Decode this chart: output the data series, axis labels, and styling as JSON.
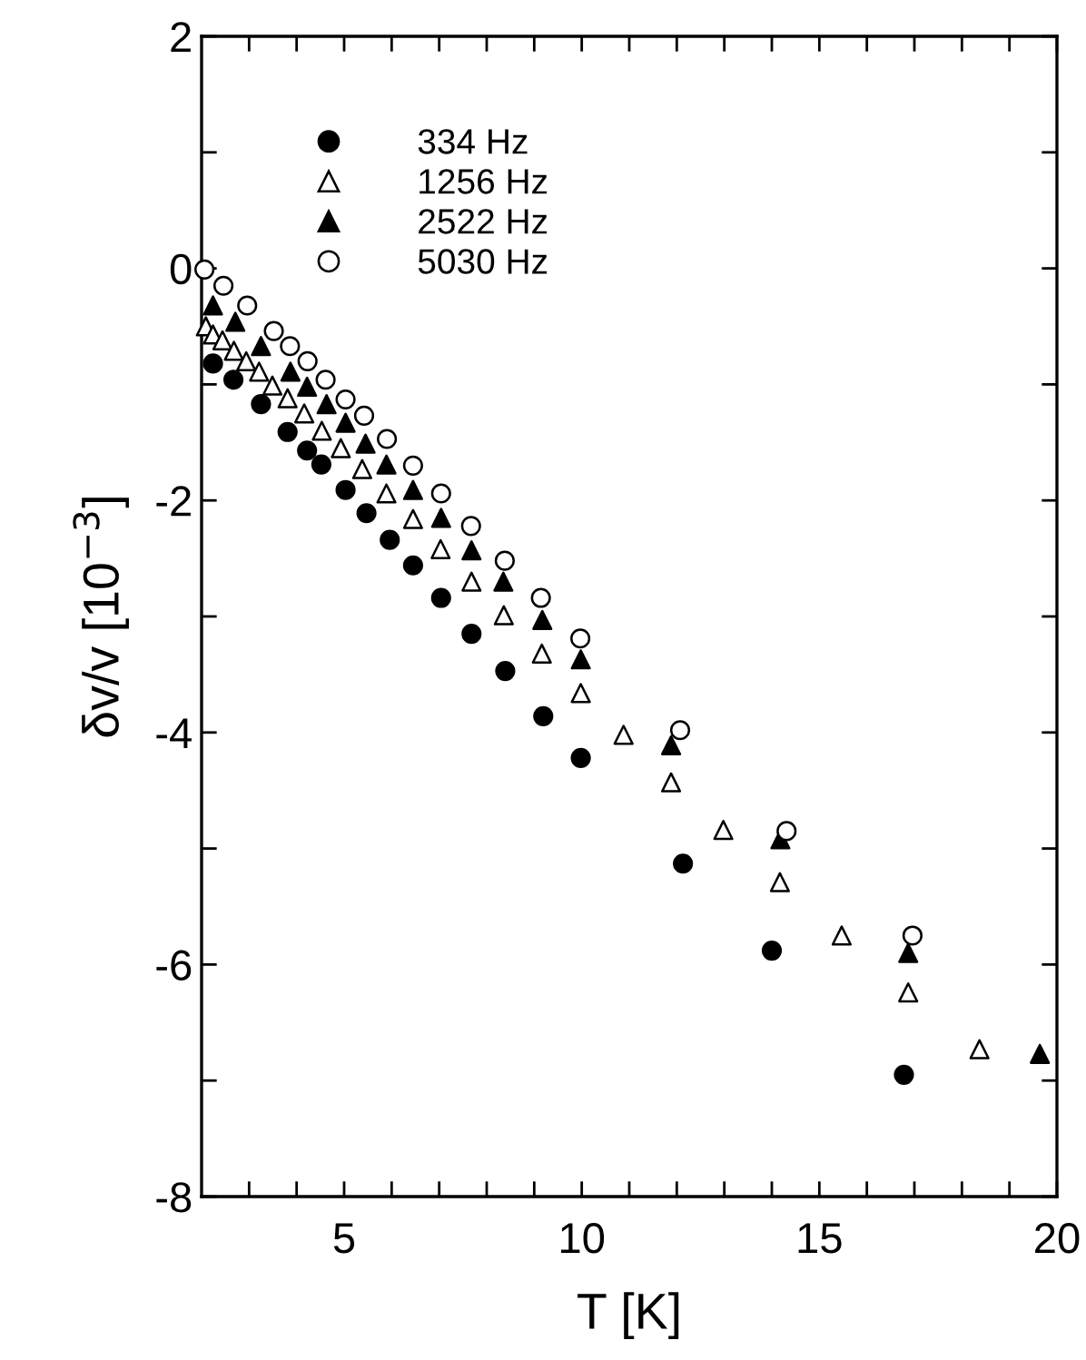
{
  "chart_data": {
    "type": "scatter",
    "xlabel": "T [K]",
    "ylabel": "δv/v [10$^{−3}$]",
    "xlim": [
      2,
      20
    ],
    "ylim": [
      -8,
      2
    ],
    "xticks": [
      {
        "value": 3,
        "label": null
      },
      {
        "value": 4,
        "label": null
      },
      5,
      {
        "value": 6,
        "label": null
      },
      {
        "value": 7,
        "label": null
      },
      {
        "value": 8,
        "label": null
      },
      {
        "value": 9,
        "label": null
      },
      10,
      {
        "value": 11,
        "label": null
      },
      {
        "value": 12,
        "label": null
      },
      {
        "value": 13,
        "label": null
      },
      {
        "value": 14,
        "label": null
      },
      15,
      {
        "value": 16,
        "label": null
      },
      {
        "value": 17,
        "label": null
      },
      {
        "value": 18,
        "label": null
      },
      {
        "value": 19,
        "label": null
      },
      20
    ],
    "yticks": [
      -8,
      {
        "value": -7,
        "label": null
      },
      -6,
      {
        "value": -5,
        "label": null
      },
      -4,
      {
        "value": -3,
        "label": null
      },
      -2,
      {
        "value": -1,
        "label": null
      },
      0,
      {
        "value": 1,
        "label": null
      },
      2
    ],
    "grid": false,
    "legend": "top left",
    "series": [
      {
        "name": "334 Hz",
        "color": "#000000",
        "marker": "circle",
        "x": [
          2.24,
          2.67,
          3.25,
          3.81,
          4.22,
          4.52,
          5.03,
          5.47,
          5.96,
          6.45,
          7.04,
          7.68,
          8.39,
          9.19,
          9.98,
          12.13,
          14.0,
          16.78
        ],
        "values": [
          -0.82,
          -0.96,
          -1.17,
          -1.41,
          -1.57,
          -1.69,
          -1.91,
          -2.11,
          -2.34,
          -2.56,
          -2.84,
          -3.15,
          -3.47,
          -3.86,
          -4.22,
          -5.13,
          -5.88,
          -6.95
        ]
      },
      {
        "name": "1256 Hz",
        "color": "#ffffff",
        "marker": "triangle",
        "x": [
          2.09,
          2.24,
          2.44,
          2.68,
          2.94,
          3.21,
          3.49,
          3.81,
          4.16,
          4.53,
          4.93,
          5.38,
          5.89,
          6.45,
          7.03,
          7.68,
          8.36,
          9.16,
          9.98,
          10.88,
          11.88,
          12.98,
          14.17,
          15.47,
          16.87,
          18.37
        ],
        "values": [
          -0.5,
          -0.57,
          -0.62,
          -0.71,
          -0.8,
          -0.89,
          -1.01,
          -1.12,
          -1.25,
          -1.4,
          -1.55,
          -1.73,
          -1.94,
          -2.16,
          -2.42,
          -2.7,
          -2.99,
          -3.32,
          -3.66,
          -4.02,
          -4.43,
          -4.84,
          -5.29,
          -5.75,
          -6.24,
          -6.73
        ]
      },
      {
        "name": "2522 Hz",
        "color": "#000000",
        "marker": "triangle",
        "x": [
          2.24,
          2.71,
          3.25,
          3.87,
          4.22,
          4.63,
          5.03,
          5.45,
          5.89,
          6.45,
          7.04,
          7.68,
          8.35,
          9.17,
          9.98,
          11.88,
          14.18,
          16.87,
          19.64
        ],
        "values": [
          -0.32,
          -0.46,
          -0.67,
          -0.89,
          -1.02,
          -1.17,
          -1.33,
          -1.51,
          -1.69,
          -1.91,
          -2.15,
          -2.43,
          -2.7,
          -3.03,
          -3.37,
          -4.11,
          -4.92,
          -5.9,
          -6.77
        ]
      },
      {
        "name": "5030 Hz",
        "color": "#ffffff",
        "marker": "circle",
        "x": [
          2.06,
          2.46,
          2.96,
          3.52,
          3.86,
          4.23,
          4.61,
          5.03,
          5.42,
          5.9,
          6.45,
          7.04,
          7.67,
          8.38,
          9.14,
          9.97,
          12.07,
          14.31,
          16.96
        ],
        "values": [
          -0.01,
          -0.15,
          -0.32,
          -0.54,
          -0.67,
          -0.8,
          -0.96,
          -1.13,
          -1.27,
          -1.47,
          -1.7,
          -1.94,
          -2.22,
          -2.52,
          -2.84,
          -3.19,
          -3.98,
          -4.85,
          -5.75
        ]
      }
    ]
  }
}
